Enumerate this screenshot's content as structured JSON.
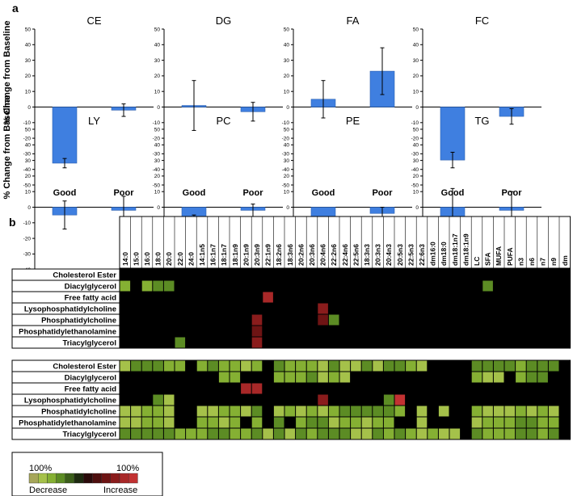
{
  "panel_a_label": "a",
  "panel_b_label": "b",
  "colors": {
    "bar": "#3f7fe0",
    "bar_edge": "#2b5fb0",
    "heat_bg": "#000000",
    "decrease_scale": [
      "#a6a65a",
      "#a5c14a",
      "#85b033",
      "#5c8c24",
      "#3b5e1a",
      "#1e2a10"
    ],
    "increase_scale": [
      "#2a0a0a",
      "#4e0e0e",
      "#6e1414",
      "#8a1c1c",
      "#a82828",
      "#c23232"
    ]
  },
  "chart_data": [
    {
      "type": "bar",
      "ylabel": "% Change from Baseline",
      "ylim": [
        -50,
        50
      ],
      "yticks": [
        50,
        40,
        30,
        20,
        10,
        0,
        -10,
        -20,
        -30,
        -40,
        -50
      ],
      "categories": [
        "Good",
        "Poor"
      ],
      "panels": [
        {
          "title": "CE",
          "values": [
            -36,
            -2
          ],
          "errors": [
            3,
            4
          ]
        },
        {
          "title": "DG",
          "values": [
            1,
            -3
          ],
          "errors": [
            16,
            6
          ]
        },
        {
          "title": "FA",
          "values": [
            5,
            23
          ],
          "errors": [
            12,
            15
          ]
        },
        {
          "title": "FC",
          "values": [
            -34,
            -6
          ],
          "errors": [
            5,
            5
          ]
        },
        {
          "title": "LY",
          "values": [
            -5,
            -2
          ],
          "errors": [
            9,
            9
          ]
        },
        {
          "title": "PC",
          "values": [
            -13,
            -2
          ],
          "errors": [
            8,
            4
          ]
        },
        {
          "title": "PE",
          "values": [
            -17,
            -4
          ],
          "errors": [
            9,
            4
          ]
        },
        {
          "title": "TG",
          "values": [
            -9,
            -2
          ],
          "errors": [
            21,
            12
          ]
        }
      ]
    },
    {
      "type": "heatmap",
      "columns": [
        "14:0",
        "15:0",
        "16:0",
        "18:0",
        "20:0",
        "22:0",
        "24:0",
        "14:1n5",
        "16:1n7",
        "18:1n7",
        "18:1n9",
        "20:1n9",
        "20:3n9",
        "22:1n9",
        "18:2n6",
        "18:3n6",
        "20:2n6",
        "20:3n6",
        "20:4n6",
        "22:2n6",
        "22:4n6",
        "22:5n6",
        "18:3n3",
        "20:3n3",
        "20:4n3",
        "20:5n3",
        "22:5n3",
        "22:6n3",
        "dm16:0",
        "dm18:0",
        "dm18:1n7",
        "dm18:1n9",
        "LC",
        "SFA",
        "MUFA",
        "PUFA",
        "n3",
        "n6",
        "n7",
        "n9",
        "dm"
      ],
      "groups": [
        {
          "rows": [
            {
              "label": "Cholesterol Ester",
              "cells": []
            },
            {
              "label": "Diacylglycerol",
              "cells": [
                [
                  0,
                  3
                ],
                [
                  2,
                  3
                ],
                [
                  3,
                  2
                ],
                [
                  4,
                  2
                ],
                [
                  33,
                  2
                ]
              ]
            },
            {
              "label": "Free fatty acid",
              "cells": [
                [
                  13,
                  -5
                ]
              ]
            },
            {
              "label": "Lysophosphatidylcholine",
              "cells": [
                [
                  18,
                  -4
                ]
              ]
            },
            {
              "label": "Phosphatidylcholine",
              "cells": [
                [
                  12,
                  -4
                ],
                [
                  18,
                  -3
                ],
                [
                  19,
                  2
                ]
              ]
            },
            {
              "label": "Phosphatidylethanolamine",
              "cells": [
                [
                  12,
                  -3
                ]
              ]
            },
            {
              "label": "Triacylglycerol",
              "cells": [
                [
                  5,
                  2
                ],
                [
                  12,
                  -4
                ]
              ]
            }
          ]
        },
        {
          "rows": [
            {
              "label": "Cholesterol Ester",
              "cells": [
                [
                  0,
                  4
                ],
                [
                  1,
                  2
                ],
                [
                  2,
                  2
                ],
                [
                  3,
                  2
                ],
                [
                  4,
                  3
                ],
                [
                  5,
                  3
                ],
                [
                  7,
                  3
                ],
                [
                  8,
                  2
                ],
                [
                  9,
                  3
                ],
                [
                  10,
                  3
                ],
                [
                  11,
                  4
                ],
                [
                  12,
                  3
                ],
                [
                  14,
                  2
                ],
                [
                  15,
                  3
                ],
                [
                  16,
                  3
                ],
                [
                  17,
                  3
                ],
                [
                  18,
                  4
                ],
                [
                  19,
                  2
                ],
                [
                  20,
                  4
                ],
                [
                  21,
                  4
                ],
                [
                  22,
                  2
                ],
                [
                  23,
                  4
                ],
                [
                  24,
                  2
                ],
                [
                  25,
                  2
                ],
                [
                  26,
                  3
                ],
                [
                  27,
                  4
                ],
                [
                  32,
                  2
                ],
                [
                  33,
                  2
                ],
                [
                  34,
                  2
                ],
                [
                  35,
                  2
                ],
                [
                  36,
                  3
                ],
                [
                  37,
                  2
                ],
                [
                  38,
                  2
                ],
                [
                  39,
                  2
                ]
              ]
            },
            {
              "label": "Diacylglycerol",
              "cells": [
                [
                  9,
                  3
                ],
                [
                  10,
                  3
                ],
                [
                  14,
                  3
                ],
                [
                  15,
                  3
                ],
                [
                  16,
                  3
                ],
                [
                  17,
                  2
                ],
                [
                  18,
                  4
                ],
                [
                  19,
                  3
                ],
                [
                  20,
                  4
                ],
                [
                  32,
                  3
                ],
                [
                  33,
                  4
                ],
                [
                  34,
                  4
                ],
                [
                  36,
                  3
                ],
                [
                  37,
                  2
                ],
                [
                  38,
                  2
                ]
              ]
            },
            {
              "label": "Free fatty acid",
              "cells": [
                [
                  11,
                  -5
                ],
                [
                  12,
                  -5
                ]
              ]
            },
            {
              "label": "Lysophosphatidylcholine",
              "cells": [
                [
                  3,
                  2
                ],
                [
                  4,
                  4
                ],
                [
                  18,
                  -4
                ],
                [
                  24,
                  2
                ],
                [
                  25,
                  -6
                ]
              ]
            },
            {
              "label": "Phosphatidylcholine",
              "cells": [
                [
                  0,
                  4
                ],
                [
                  1,
                  4
                ],
                [
                  2,
                  3
                ],
                [
                  3,
                  3
                ],
                [
                  4,
                  4
                ],
                [
                  7,
                  4
                ],
                [
                  8,
                  4
                ],
                [
                  9,
                  3
                ],
                [
                  10,
                  3
                ],
                [
                  11,
                  4
                ],
                [
                  12,
                  2
                ],
                [
                  14,
                  4
                ],
                [
                  15,
                  3
                ],
                [
                  16,
                  4
                ],
                [
                  17,
                  3
                ],
                [
                  18,
                  4
                ],
                [
                  19,
                  3
                ],
                [
                  20,
                  2
                ],
                [
                  21,
                  2
                ],
                [
                  22,
                  2
                ],
                [
                  23,
                  2
                ],
                [
                  24,
                  2
                ],
                [
                  25,
                  3
                ],
                [
                  27,
                  4
                ],
                [
                  29,
                  4
                ],
                [
                  32,
                  3
                ],
                [
                  33,
                  4
                ],
                [
                  34,
                  4
                ],
                [
                  35,
                  4
                ],
                [
                  36,
                  3
                ],
                [
                  37,
                  4
                ],
                [
                  38,
                  3
                ],
                [
                  39,
                  4
                ]
              ]
            },
            {
              "label": "Phosphatidylethanolamine",
              "cells": [
                [
                  0,
                  4
                ],
                [
                  1,
                  4
                ],
                [
                  2,
                  3
                ],
                [
                  3,
                  3
                ],
                [
                  4,
                  4
                ],
                [
                  7,
                  3
                ],
                [
                  8,
                  3
                ],
                [
                  9,
                  4
                ],
                [
                  10,
                  3
                ],
                [
                  12,
                  3
                ],
                [
                  14,
                  2
                ],
                [
                  16,
                  3
                ],
                [
                  17,
                  2
                ],
                [
                  18,
                  2
                ],
                [
                  19,
                  4
                ],
                [
                  20,
                  3
                ],
                [
                  21,
                  3
                ],
                [
                  22,
                  4
                ],
                [
                  23,
                  3
                ],
                [
                  24,
                  3
                ],
                [
                  27,
                  4
                ],
                [
                  32,
                  4
                ],
                [
                  33,
                  3
                ],
                [
                  34,
                  3
                ],
                [
                  35,
                  3
                ],
                [
                  36,
                  2
                ],
                [
                  37,
                  2
                ],
                [
                  38,
                  3
                ],
                [
                  39,
                  3
                ]
              ]
            },
            {
              "label": "Triacylglycerol",
              "cells": [
                [
                  0,
                  2
                ],
                [
                  1,
                  2
                ],
                [
                  2,
                  2
                ],
                [
                  3,
                  2
                ],
                [
                  4,
                  2
                ],
                [
                  5,
                  3
                ],
                [
                  6,
                  3
                ],
                [
                  7,
                  3
                ],
                [
                  8,
                  2
                ],
                [
                  9,
                  2
                ],
                [
                  10,
                  3
                ],
                [
                  11,
                  3
                ],
                [
                  12,
                  2
                ],
                [
                  13,
                  4
                ],
                [
                  14,
                  2
                ],
                [
                  15,
                  4
                ],
                [
                  16,
                  2
                ],
                [
                  17,
                  3
                ],
                [
                  18,
                  2
                ],
                [
                  19,
                  2
                ],
                [
                  20,
                  2
                ],
                [
                  21,
                  4
                ],
                [
                  22,
                  4
                ],
                [
                  23,
                  2
                ],
                [
                  24,
                  3
                ],
                [
                  25,
                  2
                ],
                [
                  26,
                  3
                ],
                [
                  27,
                  4
                ],
                [
                  28,
                  3
                ],
                [
                  29,
                  4
                ],
                [
                  30,
                  4
                ],
                [
                  32,
                  2
                ],
                [
                  33,
                  3
                ],
                [
                  34,
                  3
                ],
                [
                  35,
                  3
                ],
                [
                  36,
                  2
                ],
                [
                  37,
                  2
                ],
                [
                  38,
                  3
                ],
                [
                  39,
                  2
                ]
              ]
            }
          ]
        }
      ],
      "legend": {
        "left_pct": "100%",
        "right_pct": "100%",
        "left_label": "Decrease",
        "right_label": "Increase"
      }
    }
  ]
}
